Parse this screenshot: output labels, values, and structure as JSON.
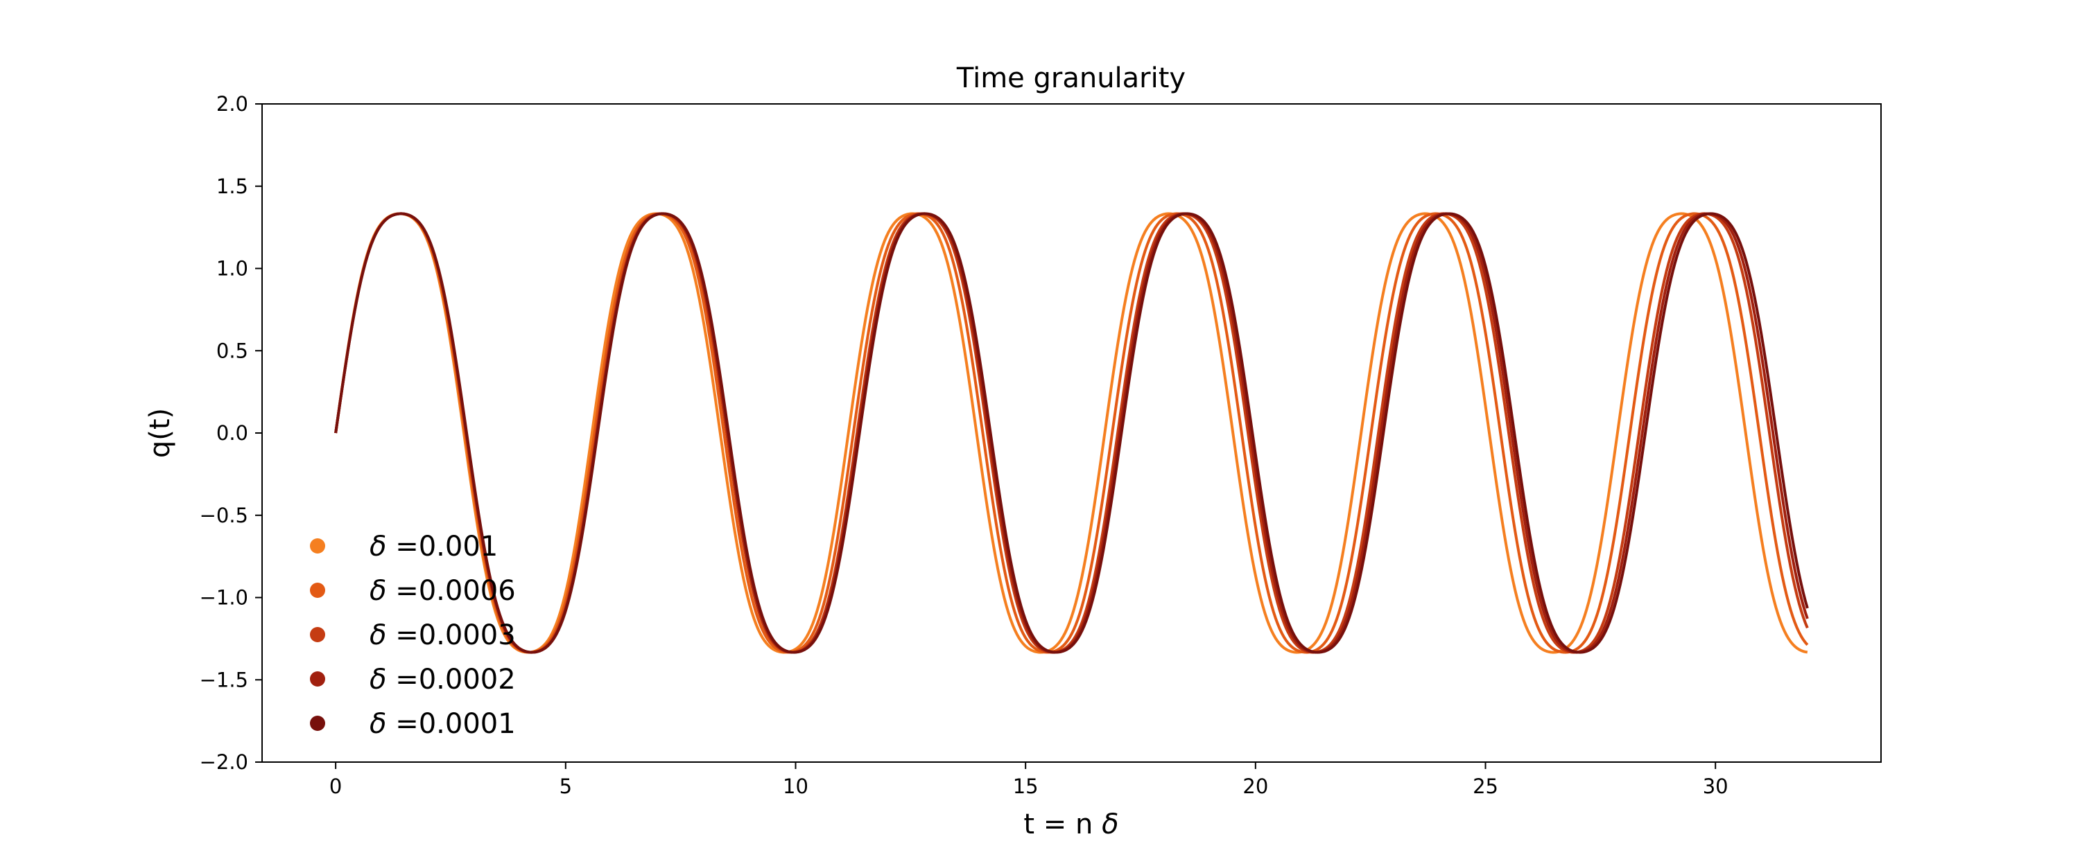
{
  "chart_data": {
    "type": "line",
    "title": "Time granularity",
    "xlabel_prefix": "t = n ",
    "xlabel_symbol": "δ",
    "ylabel": "q(t)",
    "xlim": [
      -1.6,
      33.6
    ],
    "ylim": [
      -2.0,
      2.0
    ],
    "xticks": [
      0,
      5,
      10,
      15,
      20,
      25,
      30
    ],
    "yticks": [
      -2.0,
      -1.5,
      -1.0,
      -0.5,
      0.0,
      0.5,
      1.0,
      1.5,
      2.0
    ],
    "xtick_labels": [
      "0",
      "5",
      "10",
      "15",
      "20",
      "25",
      "30"
    ],
    "ytick_labels": [
      "−2.0",
      "−1.5",
      "−1.0",
      "−0.5",
      "0.0",
      "0.5",
      "1.0",
      "1.5",
      "2.0"
    ],
    "grid": false,
    "legend_placement": "lower-left",
    "model": {
      "amplitude": 1.55,
      "t_start": 0,
      "t_end": 32,
      "samples": 700
    },
    "series": [
      {
        "legend_symbol": "δ",
        "legend_value": "=0.001",
        "color": "#f57f20",
        "period": 5.574
      },
      {
        "legend_symbol": "δ",
        "legend_value": "=0.0006",
        "color": "#e35a14",
        "period": 5.628
      },
      {
        "legend_symbol": "δ",
        "legend_value": "=0.0003",
        "color": "#c53c12",
        "period": 5.668
      },
      {
        "legend_symbol": "δ",
        "legend_value": "=0.0002",
        "color": "#a1200f",
        "period": 5.682
      },
      {
        "legend_symbol": "δ",
        "legend_value": "=0.0001",
        "color": "#77100c",
        "period": 5.695
      }
    ]
  }
}
